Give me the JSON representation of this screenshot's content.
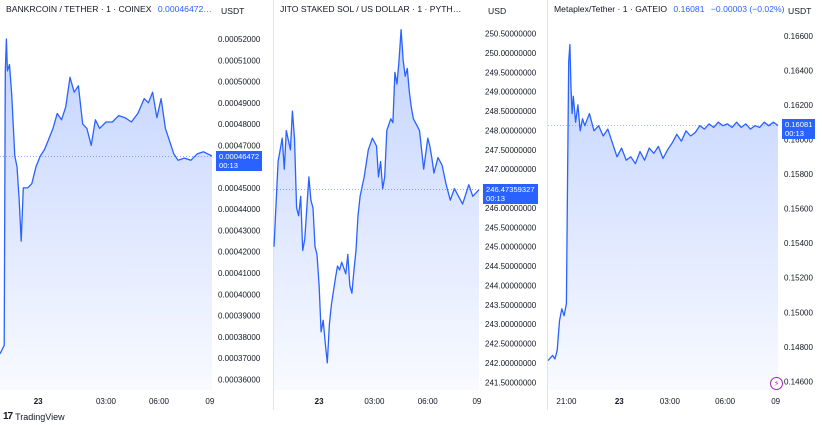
{
  "brand": {
    "name": "TradingView"
  },
  "chart_data": [
    {
      "type": "area",
      "title": "BANKRCOIN / TETHER · 1 · COINEX",
      "last_price": "0.00046472…",
      "unit": "USDT",
      "price_tag": {
        "value": "0.00046472",
        "time": "00:13"
      },
      "y_ticks": [
        "0.00052000",
        "0.00051000",
        "0.00050000",
        "0.00049000",
        "0.00048000",
        "0.00047000",
        "0.00045000",
        "0.00044000",
        "0.00043000",
        "0.00042000",
        "0.00041000",
        "0.00040000",
        "0.00039000",
        "0.00038000",
        "0.00037000",
        "0.00036000"
      ],
      "ylim": [
        0.000355,
        0.000528
      ],
      "x_ticks": [
        {
          "label": "23",
          "bold": true,
          "pos": 0.18
        },
        {
          "label": "03:00",
          "bold": false,
          "pos": 0.5
        },
        {
          "label": "06:00",
          "bold": false,
          "pos": 0.75
        },
        {
          "label": "09",
          "bold": false,
          "pos": 0.99
        }
      ],
      "last_value": 0.00046472,
      "color": "#2962ff",
      "series": [
        [
          0.0,
          0.000372
        ],
        [
          0.02,
          0.000376
        ],
        [
          0.025,
          0.000505
        ],
        [
          0.03,
          0.00052
        ],
        [
          0.035,
          0.000505
        ],
        [
          0.045,
          0.000508
        ],
        [
          0.055,
          0.000494
        ],
        [
          0.07,
          0.000465
        ],
        [
          0.08,
          0.00046
        ],
        [
          0.09,
          0.000445
        ],
        [
          0.1,
          0.000425
        ],
        [
          0.11,
          0.00045
        ],
        [
          0.13,
          0.00045
        ],
        [
          0.15,
          0.000452
        ],
        [
          0.17,
          0.00046
        ],
        [
          0.19,
          0.000465
        ],
        [
          0.21,
          0.000468
        ],
        [
          0.23,
          0.000473
        ],
        [
          0.25,
          0.000478
        ],
        [
          0.27,
          0.000485
        ],
        [
          0.29,
          0.000482
        ],
        [
          0.31,
          0.000488
        ],
        [
          0.33,
          0.000502
        ],
        [
          0.35,
          0.000495
        ],
        [
          0.37,
          0.000498
        ],
        [
          0.39,
          0.00048
        ],
        [
          0.41,
          0.000478
        ],
        [
          0.43,
          0.00047
        ],
        [
          0.45,
          0.000482
        ],
        [
          0.47,
          0.000478
        ],
        [
          0.5,
          0.000481
        ],
        [
          0.53,
          0.000481
        ],
        [
          0.56,
          0.000484
        ],
        [
          0.59,
          0.000483
        ],
        [
          0.62,
          0.000481
        ],
        [
          0.65,
          0.000485
        ],
        [
          0.68,
          0.000492
        ],
        [
          0.7,
          0.00049
        ],
        [
          0.72,
          0.000495
        ],
        [
          0.74,
          0.000483
        ],
        [
          0.76,
          0.000492
        ],
        [
          0.78,
          0.000478
        ],
        [
          0.8,
          0.000472
        ],
        [
          0.82,
          0.000466
        ],
        [
          0.84,
          0.000463
        ],
        [
          0.87,
          0.000464
        ],
        [
          0.9,
          0.000463
        ],
        [
          0.93,
          0.000466
        ],
        [
          0.96,
          0.000467
        ],
        [
          1.0,
          0.000465
        ]
      ]
    },
    {
      "type": "area",
      "title": "JITO STAKED SOL / US DOLLAR · 1 · PYTH…",
      "last_price": "",
      "unit": "USD",
      "price_tag": {
        "value": "246.47359327",
        "time": "00:13"
      },
      "y_ticks": [
        "250.50000000",
        "250.00000000",
        "249.50000000",
        "249.00000000",
        "248.50000000",
        "248.00000000",
        "247.50000000",
        "247.00000000",
        "246.00000000",
        "245.50000000",
        "245.00000000",
        "244.50000000",
        "244.00000000",
        "243.50000000",
        "243.00000000",
        "242.50000000",
        "242.00000000",
        "241.50000000"
      ],
      "ylim": [
        241.3,
        250.8
      ],
      "x_ticks": [
        {
          "label": "23",
          "bold": true,
          "pos": 0.22
        },
        {
          "label": "03:00",
          "bold": false,
          "pos": 0.49
        },
        {
          "label": "06:00",
          "bold": false,
          "pos": 0.75
        },
        {
          "label": "09",
          "bold": false,
          "pos": 0.99
        }
      ],
      "last_value": 246.4736,
      "color": "#2962ff",
      "series": [
        [
          0.0,
          245.0
        ],
        [
          0.02,
          247.2
        ],
        [
          0.04,
          247.8
        ],
        [
          0.05,
          247.0
        ],
        [
          0.06,
          248.0
        ],
        [
          0.08,
          247.5
        ],
        [
          0.09,
          248.5
        ],
        [
          0.1,
          247.8
        ],
        [
          0.11,
          246.0
        ],
        [
          0.12,
          245.8
        ],
        [
          0.13,
          246.3
        ],
        [
          0.14,
          244.9
        ],
        [
          0.15,
          245.2
        ],
        [
          0.16,
          246.0
        ],
        [
          0.17,
          246.8
        ],
        [
          0.18,
          246.2
        ],
        [
          0.19,
          246.0
        ],
        [
          0.2,
          245.0
        ],
        [
          0.21,
          244.8
        ],
        [
          0.22,
          244.0
        ],
        [
          0.23,
          242.8
        ],
        [
          0.24,
          243.1
        ],
        [
          0.25,
          242.5
        ],
        [
          0.26,
          242.0
        ],
        [
          0.27,
          243.0
        ],
        [
          0.28,
          243.5
        ],
        [
          0.3,
          244.2
        ],
        [
          0.31,
          244.5
        ],
        [
          0.32,
          244.4
        ],
        [
          0.33,
          244.6
        ],
        [
          0.35,
          244.3
        ],
        [
          0.36,
          244.8
        ],
        [
          0.37,
          244.0
        ],
        [
          0.38,
          243.8
        ],
        [
          0.39,
          244.4
        ],
        [
          0.4,
          244.9
        ],
        [
          0.41,
          245.8
        ],
        [
          0.42,
          246.3
        ],
        [
          0.44,
          246.8
        ],
        [
          0.46,
          247.5
        ],
        [
          0.48,
          247.8
        ],
        [
          0.5,
          247.6
        ],
        [
          0.51,
          246.8
        ],
        [
          0.52,
          247.2
        ],
        [
          0.53,
          246.5
        ],
        [
          0.54,
          246.8
        ],
        [
          0.55,
          248.0
        ],
        [
          0.57,
          248.3
        ],
        [
          0.58,
          248.2
        ],
        [
          0.59,
          249.5
        ],
        [
          0.6,
          249.2
        ],
        [
          0.61,
          249.8
        ],
        [
          0.62,
          250.6
        ],
        [
          0.63,
          249.8
        ],
        [
          0.64,
          249.4
        ],
        [
          0.65,
          249.6
        ],
        [
          0.66,
          249.0
        ],
        [
          0.67,
          248.6
        ],
        [
          0.68,
          248.3
        ],
        [
          0.7,
          248.1
        ],
        [
          0.71,
          248.0
        ],
        [
          0.72,
          247.5
        ],
        [
          0.73,
          247.0
        ],
        [
          0.74,
          247.4
        ],
        [
          0.75,
          247.8
        ],
        [
          0.76,
          247.6
        ],
        [
          0.77,
          247.3
        ],
        [
          0.78,
          246.9
        ],
        [
          0.8,
          247.3
        ],
        [
          0.82,
          247.1
        ],
        [
          0.84,
          246.6
        ],
        [
          0.86,
          246.2
        ],
        [
          0.88,
          246.5
        ],
        [
          0.9,
          246.3
        ],
        [
          0.92,
          246.1
        ],
        [
          0.95,
          246.6
        ],
        [
          0.97,
          246.3
        ],
        [
          1.0,
          246.47
        ]
      ]
    },
    {
      "type": "area",
      "title": "Metaplex/Tether · 1 · GATEIO",
      "last_price": "0.16081",
      "change": "−0.00003 (−0.02%)",
      "unit": "USDT",
      "price_tag": {
        "value": "0.16081",
        "time": "00:13"
      },
      "y_ticks": [
        "0.16600",
        "0.16400",
        "0.16200",
        "0.16000",
        "0.15800",
        "0.15600",
        "0.15400",
        "0.15200",
        "0.15000",
        "0.14800",
        "0.14600"
      ],
      "ylim": [
        0.1455,
        0.1668
      ],
      "x_ticks": [
        {
          "label": "21:00",
          "bold": false,
          "pos": 0.08
        },
        {
          "label": "23",
          "bold": true,
          "pos": 0.31
        },
        {
          "label": "03:00",
          "bold": false,
          "pos": 0.53
        },
        {
          "label": "06:00",
          "bold": false,
          "pos": 0.77
        },
        {
          "label": "09",
          "bold": false,
          "pos": 0.99
        }
      ],
      "last_value": 0.16081,
      "color": "#2962ff",
      "series": [
        [
          0.0,
          0.1472
        ],
        [
          0.02,
          0.1475
        ],
        [
          0.03,
          0.1473
        ],
        [
          0.04,
          0.1478
        ],
        [
          0.05,
          0.1495
        ],
        [
          0.06,
          0.1502
        ],
        [
          0.07,
          0.1498
        ],
        [
          0.08,
          0.1505
        ],
        [
          0.085,
          0.158
        ],
        [
          0.09,
          0.1645
        ],
        [
          0.095,
          0.1655
        ],
        [
          0.1,
          0.163
        ],
        [
          0.105,
          0.1615
        ],
        [
          0.11,
          0.1625
        ],
        [
          0.12,
          0.161
        ],
        [
          0.13,
          0.162
        ],
        [
          0.14,
          0.1605
        ],
        [
          0.15,
          0.1612
        ],
        [
          0.16,
          0.1608
        ],
        [
          0.18,
          0.1615
        ],
        [
          0.2,
          0.1605
        ],
        [
          0.22,
          0.1608
        ],
        [
          0.24,
          0.1602
        ],
        [
          0.26,
          0.1606
        ],
        [
          0.28,
          0.1598
        ],
        [
          0.3,
          0.159
        ],
        [
          0.32,
          0.1595
        ],
        [
          0.34,
          0.1588
        ],
        [
          0.36,
          0.159
        ],
        [
          0.38,
          0.1586
        ],
        [
          0.4,
          0.1593
        ],
        [
          0.42,
          0.1588
        ],
        [
          0.44,
          0.1595
        ],
        [
          0.46,
          0.1592
        ],
        [
          0.48,
          0.1596
        ],
        [
          0.5,
          0.1589
        ],
        [
          0.52,
          0.1594
        ],
        [
          0.54,
          0.1598
        ],
        [
          0.56,
          0.1603
        ],
        [
          0.58,
          0.1599
        ],
        [
          0.6,
          0.1605
        ],
        [
          0.62,
          0.1602
        ],
        [
          0.64,
          0.1604
        ],
        [
          0.66,
          0.1608
        ],
        [
          0.68,
          0.1606
        ],
        [
          0.7,
          0.1609
        ],
        [
          0.72,
          0.1607
        ],
        [
          0.74,
          0.161
        ],
        [
          0.76,
          0.1608
        ],
        [
          0.78,
          0.1609
        ],
        [
          0.8,
          0.1607
        ],
        [
          0.82,
          0.161
        ],
        [
          0.84,
          0.1607
        ],
        [
          0.86,
          0.1609
        ],
        [
          0.88,
          0.1606
        ],
        [
          0.9,
          0.1608
        ],
        [
          0.92,
          0.1607
        ],
        [
          0.94,
          0.161
        ],
        [
          0.96,
          0.1608
        ],
        [
          0.98,
          0.161
        ],
        [
          1.0,
          0.16081
        ]
      ]
    }
  ]
}
